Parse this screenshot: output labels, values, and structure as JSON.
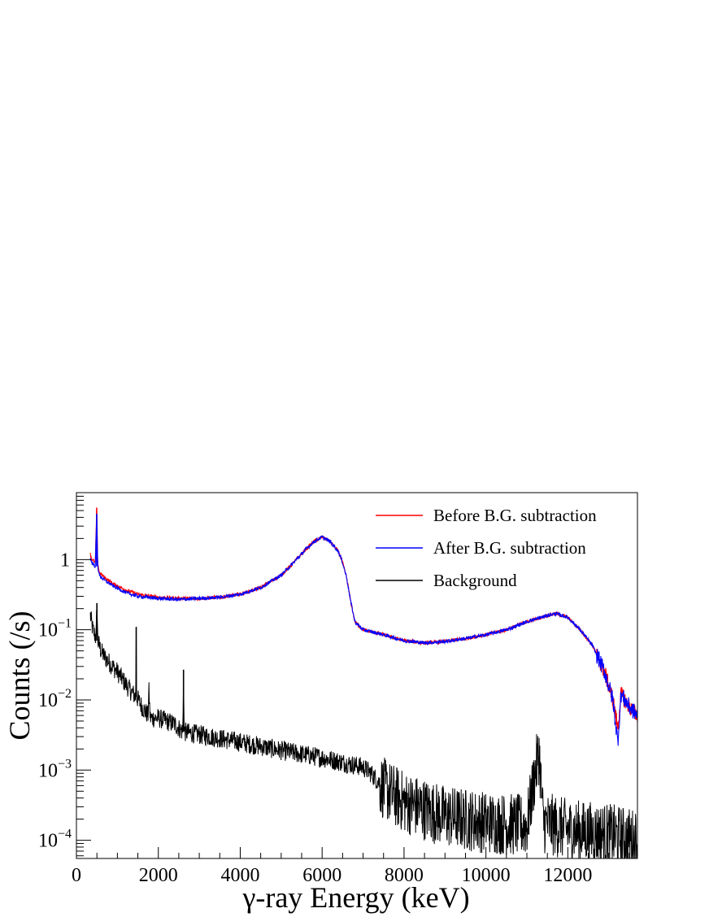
{
  "chart_data": {
    "type": "line",
    "xlabel": "γ-ray Energy (keV)",
    "ylabel": "Counts (/s)",
    "xlim": [
      0,
      13700
    ],
    "ylim": [
      5.5e-05,
      9
    ],
    "y_scale": "log",
    "grid": false,
    "legend_position": "top-right",
    "x_ticks": [
      0,
      2000,
      4000,
      6000,
      8000,
      10000,
      12000
    ],
    "x_tick_labels": [
      "0",
      "2000",
      "4000",
      "6000",
      "8000",
      "10000",
      "12000"
    ],
    "y_ticks": [
      0.0001,
      0.001,
      0.01,
      0.1,
      1
    ],
    "y_tick_base": [
      "10",
      "10",
      "10",
      "10",
      "1"
    ],
    "y_tick_exp": [
      "−4",
      "−3",
      "−2",
      "−1",
      ""
    ],
    "series": [
      {
        "name": "Before B.G. subtraction",
        "color": "#ff0000",
        "x": [
          340,
          380,
          460,
          495,
          520,
          560,
          700,
          900,
          1200,
          1500,
          2000,
          2500,
          3000,
          3500,
          4000,
          4500,
          5000,
          5300,
          5600,
          5800,
          6000,
          6200,
          6400,
          6500,
          6600,
          6700,
          6800,
          7000,
          7500,
          8000,
          8500,
          9000,
          9500,
          10000,
          10500,
          11000,
          11500,
          11700,
          12000,
          12300,
          12600,
          12900,
          13100,
          13220,
          13300,
          13500,
          13700
        ],
        "y": [
          1.2,
          1.0,
          0.9,
          5.5,
          0.9,
          0.65,
          0.55,
          0.45,
          0.37,
          0.32,
          0.29,
          0.28,
          0.28,
          0.29,
          0.32,
          0.4,
          0.6,
          0.9,
          1.4,
          1.8,
          2.1,
          1.8,
          1.3,
          0.9,
          0.55,
          0.25,
          0.13,
          0.1,
          0.085,
          0.07,
          0.065,
          0.068,
          0.075,
          0.085,
          0.1,
          0.13,
          0.16,
          0.17,
          0.15,
          0.1,
          0.06,
          0.025,
          0.01,
          0.004,
          0.012,
          0.008,
          0.006
        ]
      },
      {
        "name": "After B.G. subtraction",
        "color": "#0000ff",
        "x": [
          340,
          380,
          460,
          495,
          520,
          560,
          700,
          900,
          1200,
          1500,
          2000,
          2500,
          3000,
          3500,
          4000,
          4500,
          5000,
          5300,
          5600,
          5800,
          6000,
          6200,
          6400,
          6500,
          6600,
          6700,
          6800,
          7000,
          7500,
          8000,
          8500,
          9000,
          9500,
          10000,
          10500,
          11000,
          11500,
          11700,
          12000,
          12300,
          12600,
          12900,
          13100,
          13220,
          13300,
          13500,
          13700
        ],
        "y": [
          1.05,
          0.9,
          0.8,
          4.5,
          0.8,
          0.6,
          0.5,
          0.42,
          0.34,
          0.3,
          0.28,
          0.27,
          0.28,
          0.29,
          0.32,
          0.4,
          0.6,
          0.9,
          1.4,
          1.8,
          2.1,
          1.8,
          1.3,
          0.9,
          0.55,
          0.25,
          0.13,
          0.1,
          0.085,
          0.07,
          0.065,
          0.068,
          0.075,
          0.085,
          0.1,
          0.13,
          0.16,
          0.17,
          0.15,
          0.1,
          0.06,
          0.025,
          0.01,
          0.0025,
          0.012,
          0.008,
          0.006
        ]
      },
      {
        "name": "Background",
        "color": "#000000",
        "x": [
          340,
          400,
          480,
          500,
          520,
          600,
          700,
          1000,
          1300,
          1450,
          1460,
          1470,
          1600,
          1750,
          1770,
          1800,
          2000,
          2200,
          2400,
          2600,
          2615,
          2630,
          3000,
          4000,
          5000,
          6000,
          7000,
          7200,
          7500,
          8000,
          9000,
          10000,
          11000,
          11200,
          11300,
          11400,
          12000,
          13000,
          13700
        ],
        "y": [
          0.16,
          0.1,
          0.075,
          0.24,
          0.07,
          0.05,
          0.04,
          0.025,
          0.014,
          0.011,
          0.11,
          0.011,
          0.008,
          0.006,
          0.014,
          0.0055,
          0.0055,
          0.005,
          0.0045,
          0.0035,
          0.027,
          0.0035,
          0.0032,
          0.0025,
          0.0019,
          0.0015,
          0.0011,
          0.0009,
          0.00055,
          0.00035,
          0.00022,
          0.00018,
          0.00016,
          0.0009,
          0.0018,
          0.00018,
          0.00014,
          0.00012,
          0.0001
        ]
      }
    ]
  }
}
